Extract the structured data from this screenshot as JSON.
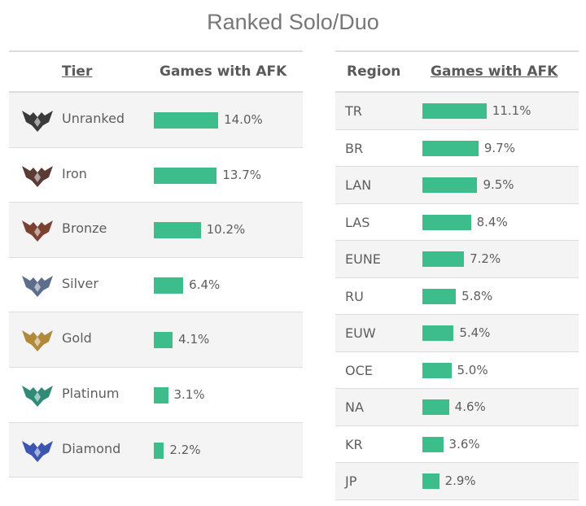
{
  "title": "Ranked Solo/Duo",
  "chart_data": [
    {
      "type": "bar",
      "orientation": "horizontal",
      "category_header": "Tier",
      "value_header": "Games with AFK",
      "categories": [
        "Unranked",
        "Iron",
        "Bronze",
        "Silver",
        "Gold",
        "Platinum",
        "Diamond"
      ],
      "values": [
        14.0,
        13.7,
        10.2,
        6.4,
        4.1,
        3.1,
        2.2
      ],
      "labels": [
        "14.0%",
        "13.7%",
        "10.2%",
        "6.4%",
        "4.1%",
        "3.1%",
        "2.2%"
      ],
      "emblem_colors": [
        "#3a3a3a",
        "#5a3b35",
        "#7a4030",
        "#5d6e8c",
        "#b08a3a",
        "#2f8a78",
        "#3b55b0"
      ],
      "bar_color": "#3dbd8c"
    },
    {
      "type": "bar",
      "orientation": "horizontal",
      "category_header": "Region",
      "value_header": "Games with AFK",
      "categories": [
        "TR",
        "BR",
        "LAN",
        "LAS",
        "EUNE",
        "RU",
        "EUW",
        "OCE",
        "NA",
        "KR",
        "JP"
      ],
      "values": [
        11.1,
        9.7,
        9.5,
        8.4,
        7.2,
        5.8,
        5.4,
        5.0,
        4.6,
        3.6,
        2.9
      ],
      "labels": [
        "11.1%",
        "9.7%",
        "9.5%",
        "8.4%",
        "7.2%",
        "5.8%",
        "5.4%",
        "5.0%",
        "4.6%",
        "3.6%",
        "2.9%"
      ],
      "bar_color": "#3dbd8c"
    }
  ]
}
